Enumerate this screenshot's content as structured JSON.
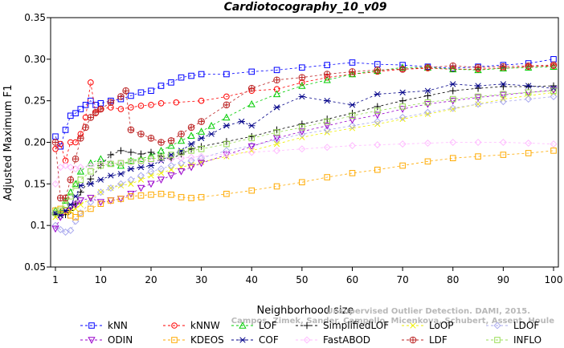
{
  "chart_data": {
    "type": "line",
    "title": "Cardiotocography_10_v09",
    "xlabel": "Neighborhood size",
    "ylabel": "Adjusted Maximum F1",
    "xlim": [
      1,
      100
    ],
    "ylim": [
      0.05,
      0.35
    ],
    "xticks": [
      1,
      10,
      20,
      30,
      40,
      50,
      60,
      70,
      80,
      90,
      100
    ],
    "yticks": [
      0.05,
      0.1,
      0.15,
      0.2,
      0.25,
      0.3,
      0.35
    ],
    "ytick_labels": [
      "0.05",
      "0.1",
      "0.15",
      "0.20",
      "0.25",
      "0.30",
      "0.35"
    ],
    "grid": false,
    "legend_position": "bottom",
    "watermark": [
      "Unsupervised Outlier Detection. DAMI, 2015.",
      "Campos, Zimek, Sander, Campello, Micenkova, Schubert, Assent, Houle"
    ],
    "series": [
      {
        "name": "kNN",
        "color": "#0000ff",
        "marker": "square",
        "dash": "3,3",
        "x": [
          1,
          2,
          3,
          4,
          5,
          6,
          7,
          8,
          9,
          10,
          12,
          14,
          16,
          18,
          20,
          22,
          24,
          26,
          28,
          30,
          35,
          40,
          45,
          50,
          55,
          60,
          65,
          70,
          75,
          80,
          85,
          90,
          95,
          100
        ],
        "y": [
          0.207,
          0.195,
          0.215,
          0.232,
          0.235,
          0.24,
          0.245,
          0.25,
          0.245,
          0.247,
          0.25,
          0.252,
          0.256,
          0.26,
          0.262,
          0.268,
          0.272,
          0.278,
          0.28,
          0.282,
          0.282,
          0.285,
          0.287,
          0.29,
          0.293,
          0.296,
          0.294,
          0.293,
          0.291,
          0.289,
          0.291,
          0.293,
          0.295,
          0.3
        ]
      },
      {
        "name": "kNNW",
        "color": "#ff0000",
        "marker": "circle",
        "dash": "3,3",
        "x": [
          1,
          2,
          3,
          4,
          5,
          6,
          7,
          8,
          9,
          10,
          12,
          14,
          16,
          18,
          20,
          22,
          25,
          30,
          35,
          40,
          45,
          50,
          55,
          60,
          65,
          70,
          75,
          80,
          85,
          90,
          95,
          100
        ],
        "y": [
          0.192,
          0.198,
          0.178,
          0.2,
          0.2,
          0.21,
          0.23,
          0.272,
          0.235,
          0.24,
          0.242,
          0.24,
          0.242,
          0.244,
          0.245,
          0.247,
          0.248,
          0.25,
          0.255,
          0.262,
          0.264,
          0.272,
          0.278,
          0.282,
          0.285,
          0.288,
          0.289,
          0.288,
          0.288,
          0.289,
          0.291,
          0.292
        ]
      },
      {
        "name": "LOF",
        "color": "#00cc00",
        "marker": "triangle",
        "dash": "3,3",
        "x": [
          1,
          2,
          3,
          4,
          5,
          6,
          8,
          10,
          12,
          14,
          16,
          18,
          20,
          22,
          24,
          26,
          28,
          30,
          32,
          35,
          40,
          45,
          50,
          55,
          60,
          65,
          70,
          75,
          80,
          85,
          90,
          95,
          100
        ],
        "y": [
          0.118,
          0.116,
          0.13,
          0.14,
          0.15,
          0.165,
          0.175,
          0.18,
          0.175,
          0.172,
          0.178,
          0.18,
          0.184,
          0.19,
          0.196,
          0.202,
          0.208,
          0.213,
          0.22,
          0.23,
          0.246,
          0.258,
          0.268,
          0.275,
          0.282,
          0.286,
          0.29,
          0.29,
          0.288,
          0.287,
          0.289,
          0.29,
          0.291
        ]
      },
      {
        "name": "SimplifiedLOF",
        "color": "#000000",
        "marker": "plus",
        "dash": "3,3",
        "x": [
          1,
          2,
          3,
          4,
          5,
          6,
          8,
          10,
          12,
          14,
          16,
          18,
          20,
          22,
          24,
          26,
          28,
          30,
          35,
          40,
          45,
          50,
          55,
          60,
          65,
          70,
          75,
          80,
          85,
          90,
          95,
          100
        ],
        "y": [
          0.113,
          0.115,
          0.113,
          0.118,
          0.126,
          0.14,
          0.156,
          0.172,
          0.185,
          0.19,
          0.188,
          0.186,
          0.188,
          0.183,
          0.18,
          0.186,
          0.192,
          0.195,
          0.201,
          0.207,
          0.215,
          0.222,
          0.228,
          0.235,
          0.243,
          0.25,
          0.256,
          0.262,
          0.265,
          0.267,
          0.267,
          0.268
        ]
      },
      {
        "name": "LoOP",
        "color": "#eeee00",
        "marker": "x",
        "dash": "3,3",
        "x": [
          1,
          2,
          3,
          4,
          5,
          6,
          8,
          10,
          12,
          14,
          16,
          18,
          20,
          22,
          24,
          26,
          28,
          30,
          35,
          40,
          45,
          50,
          55,
          60,
          65,
          70,
          75,
          80,
          85,
          90,
          95,
          100
        ],
        "y": [
          0.11,
          0.113,
          0.115,
          0.117,
          0.12,
          0.125,
          0.132,
          0.14,
          0.145,
          0.148,
          0.15,
          0.155,
          0.16,
          0.163,
          0.167,
          0.17,
          0.173,
          0.176,
          0.183,
          0.19,
          0.198,
          0.206,
          0.212,
          0.217,
          0.222,
          0.228,
          0.234,
          0.24,
          0.246,
          0.252,
          0.256,
          0.26
        ]
      },
      {
        "name": "LDOF",
        "color": "#aaaaee",
        "marker": "diamond",
        "dash": "3,3",
        "x": [
          1,
          2,
          3,
          4,
          5,
          6,
          8,
          10,
          12,
          14,
          16,
          18,
          20,
          22,
          24,
          26,
          28,
          30,
          35,
          40,
          45,
          50,
          55,
          60,
          65,
          70,
          75,
          80,
          85,
          90,
          95,
          100
        ],
        "y": [
          0.1,
          0.095,
          0.092,
          0.094,
          0.105,
          0.115,
          0.128,
          0.14,
          0.145,
          0.15,
          0.155,
          0.16,
          0.165,
          0.168,
          0.172,
          0.175,
          0.178,
          0.181,
          0.19,
          0.196,
          0.203,
          0.21,
          0.215,
          0.22,
          0.225,
          0.23,
          0.236,
          0.241,
          0.246,
          0.249,
          0.252,
          0.255
        ]
      },
      {
        "name": "ODIN",
        "color": "#9900cc",
        "marker": "invtriangle",
        "dash": "3,3",
        "x": [
          1,
          2,
          3,
          4,
          5,
          6,
          8,
          10,
          12,
          14,
          16,
          18,
          20,
          22,
          24,
          26,
          28,
          30,
          35,
          40,
          45,
          50,
          55,
          60,
          65,
          70,
          75,
          80,
          85,
          90,
          95,
          100
        ],
        "y": [
          0.096,
          0.11,
          0.118,
          0.122,
          0.125,
          0.13,
          0.133,
          0.128,
          0.13,
          0.132,
          0.138,
          0.145,
          0.15,
          0.155,
          0.16,
          0.165,
          0.17,
          0.175,
          0.185,
          0.195,
          0.205,
          0.213,
          0.22,
          0.227,
          0.233,
          0.24,
          0.246,
          0.25,
          0.254,
          0.257,
          0.26,
          0.263
        ]
      },
      {
        "name": "KDEOS",
        "color": "#ffaa00",
        "marker": "square",
        "dash": "3,3",
        "x": [
          1,
          2,
          3,
          4,
          5,
          6,
          8,
          10,
          12,
          14,
          16,
          18,
          20,
          22,
          24,
          26,
          28,
          30,
          35,
          40,
          45,
          50,
          55,
          60,
          65,
          70,
          75,
          80,
          85,
          90,
          95,
          100
        ],
        "y": [
          0.118,
          0.12,
          0.118,
          0.112,
          0.11,
          0.114,
          0.12,
          0.126,
          0.13,
          0.132,
          0.135,
          0.136,
          0.137,
          0.138,
          0.137,
          0.134,
          0.133,
          0.134,
          0.138,
          0.142,
          0.147,
          0.152,
          0.158,
          0.163,
          0.167,
          0.172,
          0.177,
          0.181,
          0.183,
          0.185,
          0.187,
          0.19
        ]
      },
      {
        "name": "COF",
        "color": "#000088",
        "marker": "asterisk",
        "dash": "3,3",
        "x": [
          1,
          2,
          3,
          4,
          5,
          6,
          8,
          10,
          12,
          14,
          16,
          18,
          20,
          22,
          24,
          26,
          28,
          30,
          32,
          35,
          38,
          40,
          45,
          50,
          55,
          60,
          65,
          70,
          75,
          80,
          85,
          90,
          95,
          100
        ],
        "y": [
          0.115,
          0.112,
          0.118,
          0.125,
          0.135,
          0.148,
          0.15,
          0.155,
          0.16,
          0.162,
          0.168,
          0.17,
          0.172,
          0.178,
          0.185,
          0.19,
          0.198,
          0.205,
          0.21,
          0.22,
          0.225,
          0.22,
          0.242,
          0.255,
          0.25,
          0.245,
          0.258,
          0.26,
          0.262,
          0.27,
          0.268,
          0.27,
          0.268,
          0.265
        ]
      },
      {
        "name": "FastABOD",
        "color": "#ffbbff",
        "marker": "diamond",
        "dash": "3,3",
        "x": [
          1,
          2,
          3,
          4,
          5,
          6,
          8,
          10,
          12,
          14,
          16,
          18,
          20,
          22,
          24,
          26,
          28,
          30,
          35,
          40,
          45,
          50,
          55,
          60,
          65,
          70,
          75,
          80,
          85,
          90,
          95,
          100
        ],
        "y": [
          0.15,
          0.17,
          0.172,
          0.17,
          0.168,
          0.17,
          0.172,
          0.175,
          0.175,
          0.175,
          0.176,
          0.177,
          0.178,
          0.179,
          0.18,
          0.181,
          0.182,
          0.183,
          0.186,
          0.188,
          0.19,
          0.192,
          0.194,
          0.196,
          0.197,
          0.198,
          0.199,
          0.2,
          0.2,
          0.2,
          0.199,
          0.198
        ]
      },
      {
        "name": "LDF",
        "color": "#bb2222",
        "marker": "circleplus",
        "dash": "3,3",
        "x": [
          1,
          2,
          3,
          4,
          5,
          6,
          7,
          8,
          9,
          10,
          12,
          14,
          15,
          16,
          18,
          20,
          22,
          24,
          26,
          28,
          30,
          35,
          40,
          45,
          50,
          55,
          60,
          65,
          70,
          75,
          80,
          85,
          90,
          95,
          100
        ],
        "y": [
          0.2,
          0.133,
          0.133,
          0.155,
          0.18,
          0.205,
          0.218,
          0.23,
          0.236,
          0.24,
          0.248,
          0.255,
          0.262,
          0.215,
          0.21,
          0.205,
          0.2,
          0.202,
          0.21,
          0.218,
          0.225,
          0.245,
          0.265,
          0.275,
          0.278,
          0.282,
          0.285,
          0.287,
          0.288,
          0.29,
          0.292,
          0.29,
          0.291,
          0.292,
          0.293
        ]
      },
      {
        "name": "INFLO",
        "color": "#99dd55",
        "marker": "square",
        "dash": "3,3",
        "x": [
          1,
          2,
          3,
          4,
          5,
          6,
          8,
          10,
          12,
          14,
          16,
          18,
          20,
          22,
          24,
          26,
          28,
          30,
          35,
          40,
          45,
          50,
          55,
          60,
          65,
          70,
          75,
          80,
          85,
          90,
          95,
          100
        ],
        "y": [
          0.115,
          0.118,
          0.125,
          0.135,
          0.148,
          0.155,
          0.165,
          0.172,
          0.174,
          0.175,
          0.177,
          0.178,
          0.18,
          0.182,
          0.185,
          0.188,
          0.19,
          0.192,
          0.198,
          0.205,
          0.212,
          0.218,
          0.225,
          0.232,
          0.238,
          0.243,
          0.248,
          0.252,
          0.255,
          0.258,
          0.26,
          0.262
        ]
      }
    ]
  }
}
